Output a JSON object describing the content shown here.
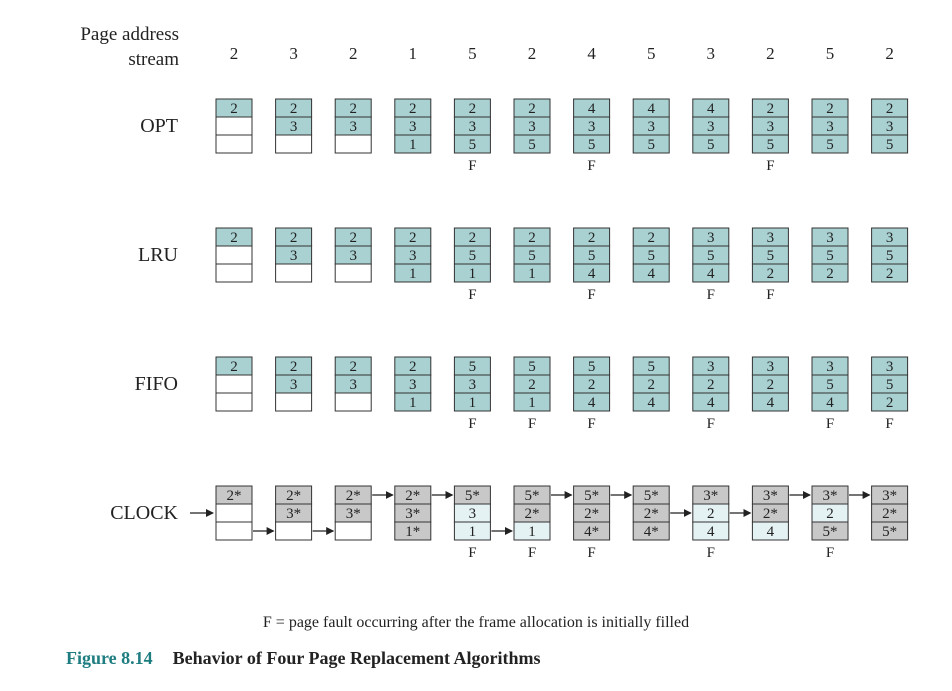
{
  "header": {
    "label_line1": "Page address",
    "label_line2": "stream",
    "stream": [
      "2",
      "3",
      "2",
      "1",
      "5",
      "2",
      "4",
      "5",
      "3",
      "2",
      "5",
      "2"
    ]
  },
  "colors": {
    "teal": "#a9d1d2",
    "empty": "#ffffff",
    "grey": "#c8c8c8",
    "light": "#e4f2f3",
    "caption_accent": "#1e7d80"
  },
  "algorithms": [
    {
      "name": "OPT",
      "clock": false,
      "frames": [
        [
          {
            "v": "2",
            "s": "t"
          },
          {
            "v": "",
            "s": "w"
          },
          {
            "v": "",
            "s": "w"
          }
        ],
        [
          {
            "v": "2",
            "s": "t"
          },
          {
            "v": "3",
            "s": "t"
          },
          {
            "v": "",
            "s": "w"
          }
        ],
        [
          {
            "v": "2",
            "s": "t"
          },
          {
            "v": "3",
            "s": "t"
          },
          {
            "v": "",
            "s": "w"
          }
        ],
        [
          {
            "v": "2",
            "s": "t"
          },
          {
            "v": "3",
            "s": "t"
          },
          {
            "v": "1",
            "s": "t"
          }
        ],
        [
          {
            "v": "2",
            "s": "t"
          },
          {
            "v": "3",
            "s": "t"
          },
          {
            "v": "5",
            "s": "t"
          }
        ],
        [
          {
            "v": "2",
            "s": "t"
          },
          {
            "v": "3",
            "s": "t"
          },
          {
            "v": "5",
            "s": "t"
          }
        ],
        [
          {
            "v": "4",
            "s": "t"
          },
          {
            "v": "3",
            "s": "t"
          },
          {
            "v": "5",
            "s": "t"
          }
        ],
        [
          {
            "v": "4",
            "s": "t"
          },
          {
            "v": "3",
            "s": "t"
          },
          {
            "v": "5",
            "s": "t"
          }
        ],
        [
          {
            "v": "4",
            "s": "t"
          },
          {
            "v": "3",
            "s": "t"
          },
          {
            "v": "5",
            "s": "t"
          }
        ],
        [
          {
            "v": "2",
            "s": "t"
          },
          {
            "v": "3",
            "s": "t"
          },
          {
            "v": "5",
            "s": "t"
          }
        ],
        [
          {
            "v": "2",
            "s": "t"
          },
          {
            "v": "3",
            "s": "t"
          },
          {
            "v": "5",
            "s": "t"
          }
        ],
        [
          {
            "v": "2",
            "s": "t"
          },
          {
            "v": "3",
            "s": "t"
          },
          {
            "v": "5",
            "s": "t"
          }
        ]
      ],
      "faults": [
        "",
        "",
        "",
        "",
        "F",
        "",
        "F",
        "",
        "",
        "F",
        "",
        ""
      ],
      "arrows": []
    },
    {
      "name": "LRU",
      "clock": false,
      "frames": [
        [
          {
            "v": "2",
            "s": "t"
          },
          {
            "v": "",
            "s": "w"
          },
          {
            "v": "",
            "s": "w"
          }
        ],
        [
          {
            "v": "2",
            "s": "t"
          },
          {
            "v": "3",
            "s": "t"
          },
          {
            "v": "",
            "s": "w"
          }
        ],
        [
          {
            "v": "2",
            "s": "t"
          },
          {
            "v": "3",
            "s": "t"
          },
          {
            "v": "",
            "s": "w"
          }
        ],
        [
          {
            "v": "2",
            "s": "t"
          },
          {
            "v": "3",
            "s": "t"
          },
          {
            "v": "1",
            "s": "t"
          }
        ],
        [
          {
            "v": "2",
            "s": "t"
          },
          {
            "v": "5",
            "s": "t"
          },
          {
            "v": "1",
            "s": "t"
          }
        ],
        [
          {
            "v": "2",
            "s": "t"
          },
          {
            "v": "5",
            "s": "t"
          },
          {
            "v": "1",
            "s": "t"
          }
        ],
        [
          {
            "v": "2",
            "s": "t"
          },
          {
            "v": "5",
            "s": "t"
          },
          {
            "v": "4",
            "s": "t"
          }
        ],
        [
          {
            "v": "2",
            "s": "t"
          },
          {
            "v": "5",
            "s": "t"
          },
          {
            "v": "4",
            "s": "t"
          }
        ],
        [
          {
            "v": "3",
            "s": "t"
          },
          {
            "v": "5",
            "s": "t"
          },
          {
            "v": "4",
            "s": "t"
          }
        ],
        [
          {
            "v": "3",
            "s": "t"
          },
          {
            "v": "5",
            "s": "t"
          },
          {
            "v": "2",
            "s": "t"
          }
        ],
        [
          {
            "v": "3",
            "s": "t"
          },
          {
            "v": "5",
            "s": "t"
          },
          {
            "v": "2",
            "s": "t"
          }
        ],
        [
          {
            "v": "3",
            "s": "t"
          },
          {
            "v": "5",
            "s": "t"
          },
          {
            "v": "2",
            "s": "t"
          }
        ]
      ],
      "faults": [
        "",
        "",
        "",
        "",
        "F",
        "",
        "F",
        "",
        "F",
        "F",
        "",
        ""
      ],
      "arrows": []
    },
    {
      "name": "FIFO",
      "clock": false,
      "frames": [
        [
          {
            "v": "2",
            "s": "t"
          },
          {
            "v": "",
            "s": "w"
          },
          {
            "v": "",
            "s": "w"
          }
        ],
        [
          {
            "v": "2",
            "s": "t"
          },
          {
            "v": "3",
            "s": "t"
          },
          {
            "v": "",
            "s": "w"
          }
        ],
        [
          {
            "v": "2",
            "s": "t"
          },
          {
            "v": "3",
            "s": "t"
          },
          {
            "v": "",
            "s": "w"
          }
        ],
        [
          {
            "v": "2",
            "s": "t"
          },
          {
            "v": "3",
            "s": "t"
          },
          {
            "v": "1",
            "s": "t"
          }
        ],
        [
          {
            "v": "5",
            "s": "t"
          },
          {
            "v": "3",
            "s": "t"
          },
          {
            "v": "1",
            "s": "t"
          }
        ],
        [
          {
            "v": "5",
            "s": "t"
          },
          {
            "v": "2",
            "s": "t"
          },
          {
            "v": "1",
            "s": "t"
          }
        ],
        [
          {
            "v": "5",
            "s": "t"
          },
          {
            "v": "2",
            "s": "t"
          },
          {
            "v": "4",
            "s": "t"
          }
        ],
        [
          {
            "v": "5",
            "s": "t"
          },
          {
            "v": "2",
            "s": "t"
          },
          {
            "v": "4",
            "s": "t"
          }
        ],
        [
          {
            "v": "3",
            "s": "t"
          },
          {
            "v": "2",
            "s": "t"
          },
          {
            "v": "4",
            "s": "t"
          }
        ],
        [
          {
            "v": "3",
            "s": "t"
          },
          {
            "v": "2",
            "s": "t"
          },
          {
            "v": "4",
            "s": "t"
          }
        ],
        [
          {
            "v": "3",
            "s": "t"
          },
          {
            "v": "5",
            "s": "t"
          },
          {
            "v": "4",
            "s": "t"
          }
        ],
        [
          {
            "v": "3",
            "s": "t"
          },
          {
            "v": "5",
            "s": "t"
          },
          {
            "v": "2",
            "s": "t"
          }
        ]
      ],
      "faults": [
        "",
        "",
        "",
        "",
        "F",
        "F",
        "F",
        "",
        "F",
        "",
        "F",
        "F"
      ],
      "arrows": []
    },
    {
      "name": "CLOCK",
      "clock": true,
      "frames": [
        [
          {
            "v": "2*",
            "s": "g"
          },
          {
            "v": "",
            "s": "w"
          },
          {
            "v": "",
            "s": "w"
          }
        ],
        [
          {
            "v": "2*",
            "s": "g"
          },
          {
            "v": "3*",
            "s": "g"
          },
          {
            "v": "",
            "s": "w"
          }
        ],
        [
          {
            "v": "2*",
            "s": "g"
          },
          {
            "v": "3*",
            "s": "g"
          },
          {
            "v": "",
            "s": "w"
          }
        ],
        [
          {
            "v": "2*",
            "s": "g"
          },
          {
            "v": "3*",
            "s": "g"
          },
          {
            "v": "1*",
            "s": "g"
          }
        ],
        [
          {
            "v": "5*",
            "s": "g"
          },
          {
            "v": "3",
            "s": "l"
          },
          {
            "v": "1",
            "s": "l"
          }
        ],
        [
          {
            "v": "5*",
            "s": "g"
          },
          {
            "v": "2*",
            "s": "g"
          },
          {
            "v": "1",
            "s": "l"
          }
        ],
        [
          {
            "v": "5*",
            "s": "g"
          },
          {
            "v": "2*",
            "s": "g"
          },
          {
            "v": "4*",
            "s": "g"
          }
        ],
        [
          {
            "v": "5*",
            "s": "g"
          },
          {
            "v": "2*",
            "s": "g"
          },
          {
            "v": "4*",
            "s": "g"
          }
        ],
        [
          {
            "v": "3*",
            "s": "g"
          },
          {
            "v": "2",
            "s": "l"
          },
          {
            "v": "4",
            "s": "l"
          }
        ],
        [
          {
            "v": "3*",
            "s": "g"
          },
          {
            "v": "2*",
            "s": "g"
          },
          {
            "v": "4",
            "s": "l"
          }
        ],
        [
          {
            "v": "3*",
            "s": "g"
          },
          {
            "v": "2",
            "s": "l"
          },
          {
            "v": "5*",
            "s": "g"
          }
        ],
        [
          {
            "v": "3*",
            "s": "g"
          },
          {
            "v": "2*",
            "s": "g"
          },
          {
            "v": "5*",
            "s": "g"
          }
        ]
      ],
      "faults": [
        "",
        "",
        "",
        "",
        "F",
        "F",
        "F",
        "",
        "F",
        "",
        "F",
        ""
      ],
      "arrows": [
        {
          "from": 0,
          "row": 2
        },
        {
          "from": 1,
          "row": 2
        },
        {
          "from": 2,
          "row": 0
        },
        {
          "from": 3,
          "row": 0
        },
        {
          "from": 4,
          "row": 2
        },
        {
          "from": 5,
          "row": 0
        },
        {
          "from": 6,
          "row": 0
        },
        {
          "from": 7,
          "row": 1
        },
        {
          "from": 8,
          "row": 1
        },
        {
          "from": 9,
          "row": 0
        },
        {
          "from": 10,
          "row": 0
        }
      ]
    }
  ],
  "footnote": "F = page fault occurring after the frame allocation is initially filled",
  "caption": {
    "number": "Figure 8.14",
    "title": "Behavior of Four Page Replacement Algorithms"
  }
}
